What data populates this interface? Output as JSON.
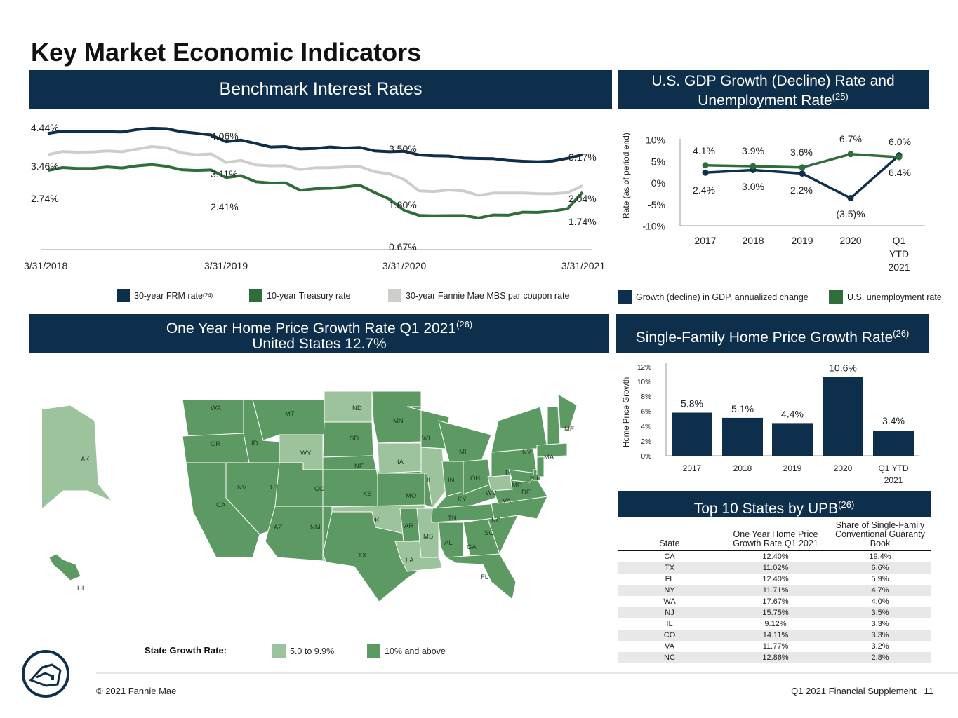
{
  "page": {
    "title": "Key Market Economic Indicators",
    "footer_left": "© 2021 Fannie Mae",
    "footer_right": "Q1 2021 Financial Supplement   11"
  },
  "colors": {
    "navy": "#0e2f4c",
    "green": "#2f6e3b",
    "gray": "#cfcdca",
    "state_dark": "#5d9a63",
    "state_light": "#9dc39d"
  },
  "panels": {
    "rates_title": "Benchmark Interest Rates",
    "gdp_title_line1": "U.S. GDP Growth (Decline) Rate and",
    "gdp_title_line2": "Unemployment Rate",
    "gdp_title_sup": "(25)",
    "map_title_line1": "One Year Home Price Growth Rate Q1 2021",
    "map_title_sup": "(26)",
    "map_title_line2": "United States 12.7%",
    "hpg_title": "Single-Family Home Price Growth Rate",
    "hpg_title_sup": "(26)",
    "top10_title": "Top 10 States by UPB",
    "top10_title_sup": "(26)"
  },
  "chart_data": [
    {
      "type": "line",
      "title": "Benchmark Interest Rates",
      "x_labels": [
        "3/31/2018",
        "3/31/2019",
        "3/31/2020",
        "3/31/2021"
      ],
      "series": [
        {
          "name": "30-year FRM rate",
          "name_sup": "(24)",
          "color": "#0e2f4c",
          "values": [
            4.44,
            4.55,
            4.54,
            4.53,
            4.52,
            4.51,
            4.62,
            4.68,
            4.66,
            4.52,
            4.45,
            4.37,
            4.06,
            4.14,
            3.98,
            3.82,
            3.84,
            3.73,
            3.75,
            3.82,
            3.77,
            3.8,
            3.64,
            3.6,
            3.62,
            3.45,
            3.41,
            3.4,
            3.31,
            3.29,
            3.28,
            3.2,
            3.16,
            3.14,
            3.17,
            3.3,
            3.46
          ]
        },
        {
          "name": "30-year Fannie Mae MBS par coupon rate",
          "color": "#cfcdca",
          "values": [
            3.46,
            3.61,
            3.58,
            3.59,
            3.64,
            3.6,
            3.72,
            3.84,
            3.78,
            3.55,
            3.46,
            3.5,
            3.11,
            3.2,
            2.99,
            2.95,
            2.96,
            2.78,
            2.86,
            2.86,
            2.9,
            2.92,
            2.68,
            2.58,
            2.32,
            1.8,
            1.77,
            1.84,
            1.8,
            1.59,
            1.7,
            1.7,
            1.7,
            1.67,
            1.67,
            1.72,
            2.04
          ]
        },
        {
          "name": "10-year Treasury rate",
          "color": "#2f6e3b",
          "values": [
            2.74,
            2.87,
            2.83,
            2.83,
            2.9,
            2.85,
            2.95,
            3.01,
            2.93,
            2.77,
            2.74,
            2.76,
            2.41,
            2.5,
            2.22,
            2.16,
            2.17,
            1.83,
            1.9,
            1.92,
            1.98,
            2.06,
            1.73,
            1.42,
            0.9,
            0.67,
            0.65,
            0.66,
            0.66,
            0.55,
            0.69,
            0.68,
            0.82,
            0.81,
            0.87,
            0.98,
            1.74
          ]
        }
      ],
      "point_labels": [
        {
          "text": "4.44%"
        },
        {
          "text": "4.06%"
        },
        {
          "text": "3.50%"
        },
        {
          "text": "3.17%"
        },
        {
          "text": "3.46%"
        },
        {
          "text": "3.11%"
        },
        {
          "text": "2.74%"
        },
        {
          "text": "2.41%"
        },
        {
          "text": "1.80%"
        },
        {
          "text": "0.67%"
        },
        {
          "text": "2.04%"
        },
        {
          "text": "1.74%"
        }
      ]
    },
    {
      "type": "line",
      "title": "U.S. GDP Growth (Decline) Rate and Unemployment Rate",
      "ylabel": "Rate (as of period end)",
      "ylim": [
        -10,
        10
      ],
      "y_ticks": [
        "10%",
        "5%",
        "0%",
        "-5%",
        "-10%"
      ],
      "categories": [
        "2017",
        "2018",
        "2019",
        "2020",
        "Q1 YTD 2021"
      ],
      "series": [
        {
          "name": "Growth (decline) in GDP, annualized change",
          "color": "#0e2f4c",
          "values": [
            2.4,
            3.0,
            2.2,
            -3.5,
            6.4
          ],
          "labels": [
            "2.4%",
            "3.0%",
            "2.2%",
            "(3.5)%",
            "6.4%"
          ]
        },
        {
          "name": "U.S. unemployment rate",
          "color": "#2f6e3b",
          "values": [
            4.1,
            3.9,
            3.6,
            6.7,
            6.0
          ],
          "labels": [
            "4.1%",
            "3.9%",
            "3.6%",
            "6.7%",
            "6.0%"
          ]
        }
      ]
    },
    {
      "type": "bar",
      "title": "Single-Family Home Price Growth Rate",
      "ylabel": "Home Price Growth",
      "ylim": [
        0,
        12
      ],
      "y_ticks": [
        "12%",
        "10%",
        "8%",
        "6%",
        "4%",
        "2%",
        "0%"
      ],
      "categories": [
        "2017",
        "2018",
        "2019",
        "2020",
        "Q1 YTD 2021"
      ],
      "values": [
        5.8,
        5.1,
        4.4,
        10.6,
        3.4
      ],
      "labels": [
        "5.8%",
        "5.1%",
        "4.4%",
        "10.6%",
        "3.4%"
      ]
    },
    {
      "type": "table",
      "title": "Top 10 States by UPB",
      "columns": [
        "State",
        "One Year Home Price Growth Rate Q1 2021",
        "Share of Single-Family Conventional Guaranty Book"
      ],
      "rows": [
        [
          "CA",
          "12.40%",
          "19.4%"
        ],
        [
          "TX",
          "11.02%",
          "6.6%"
        ],
        [
          "FL",
          "12.40%",
          "5.9%"
        ],
        [
          "NY",
          "11.71%",
          "4.7%"
        ],
        [
          "WA",
          "17.67%",
          "4.0%"
        ],
        [
          "NJ",
          "15.75%",
          "3.5%"
        ],
        [
          "IL",
          "9.12%",
          "3.3%"
        ],
        [
          "CO",
          "14.11%",
          "3.3%"
        ],
        [
          "VA",
          "11.77%",
          "3.2%"
        ],
        [
          "NC",
          "12.86%",
          "2.8%"
        ]
      ]
    }
  ],
  "map": {
    "legend_title": "State Growth Rate:",
    "legend_low": "5.0 to 9.9%",
    "legend_high": "10% and above",
    "states": [
      {
        "abbr": "WA",
        "tier": "high"
      },
      {
        "abbr": "OR",
        "tier": "high"
      },
      {
        "abbr": "CA",
        "tier": "high"
      },
      {
        "abbr": "ID",
        "tier": "high"
      },
      {
        "abbr": "NV",
        "tier": "high"
      },
      {
        "abbr": "MT",
        "tier": "high"
      },
      {
        "abbr": "WY",
        "tier": "low"
      },
      {
        "abbr": "UT",
        "tier": "high"
      },
      {
        "abbr": "AZ",
        "tier": "high"
      },
      {
        "abbr": "CO",
        "tier": "high"
      },
      {
        "abbr": "NM",
        "tier": "high"
      },
      {
        "abbr": "ND",
        "tier": "low"
      },
      {
        "abbr": "SD",
        "tier": "high"
      },
      {
        "abbr": "NE",
        "tier": "high"
      },
      {
        "abbr": "KS",
        "tier": "high"
      },
      {
        "abbr": "OK",
        "tier": "low"
      },
      {
        "abbr": "TX",
        "tier": "high"
      },
      {
        "abbr": "MN",
        "tier": "high"
      },
      {
        "abbr": "IA",
        "tier": "low"
      },
      {
        "abbr": "MO",
        "tier": "high"
      },
      {
        "abbr": "AR",
        "tier": "high"
      },
      {
        "abbr": "LA",
        "tier": "low"
      },
      {
        "abbr": "WI",
        "tier": "high"
      },
      {
        "abbr": "IL",
        "tier": "low"
      },
      {
        "abbr": "MS",
        "tier": "low"
      },
      {
        "abbr": "MI",
        "tier": "high"
      },
      {
        "abbr": "IN",
        "tier": "high"
      },
      {
        "abbr": "KY",
        "tier": "high"
      },
      {
        "abbr": "TN",
        "tier": "high"
      },
      {
        "abbr": "AL",
        "tier": "high"
      },
      {
        "abbr": "OH",
        "tier": "high"
      },
      {
        "abbr": "GA",
        "tier": "high"
      },
      {
        "abbr": "FL",
        "tier": "high"
      },
      {
        "abbr": "SC",
        "tier": "high"
      },
      {
        "abbr": "NC",
        "tier": "high"
      },
      {
        "abbr": "VA",
        "tier": "high"
      },
      {
        "abbr": "WV",
        "tier": "low"
      },
      {
        "abbr": "PA",
        "tier": "high"
      },
      {
        "abbr": "NY",
        "tier": "high"
      },
      {
        "abbr": "MD",
        "tier": "high"
      },
      {
        "abbr": "DE",
        "tier": "high"
      },
      {
        "abbr": "NJ",
        "tier": "high"
      },
      {
        "abbr": "ME",
        "tier": "high"
      },
      {
        "abbr": "NH",
        "tier": "high"
      },
      {
        "abbr": "MA",
        "tier": "high"
      },
      {
        "abbr": "AK",
        "tier": "low"
      },
      {
        "abbr": "HI",
        "tier": "high"
      }
    ]
  }
}
